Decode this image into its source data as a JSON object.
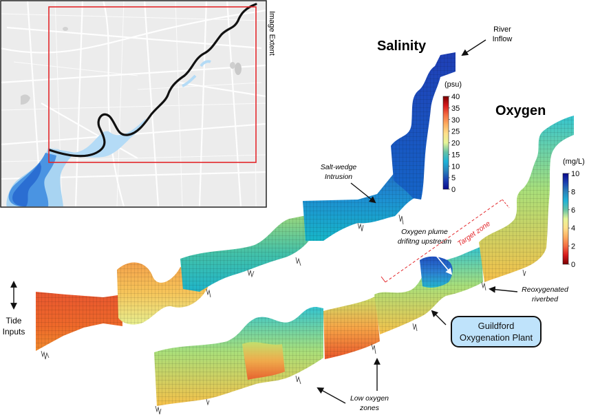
{
  "map_inset": {
    "extent_label": "Image Extent"
  },
  "panels": {
    "salinity": {
      "title": "Salinity",
      "unit": "(psu)",
      "ticks": [
        "40",
        "35",
        "30",
        "25",
        "20",
        "15",
        "10",
        "5",
        "0"
      ],
      "colormap": [
        "#7a0000",
        "#d7191c",
        "#f46d43",
        "#fdae61",
        "#fee08b",
        "#e6f598",
        "#66c2a5",
        "#1fb3d8",
        "#2b83ba",
        "#1b3fb0",
        "#0a0a8c"
      ]
    },
    "oxygen": {
      "title": "Oxygen",
      "unit": "(mg/L)",
      "ticks": [
        "10",
        "8",
        "6",
        "4",
        "2",
        "0"
      ],
      "colormap": [
        "#0a0a8c",
        "#1b3fb0",
        "#2b83ba",
        "#1fb3d8",
        "#66c2a5",
        "#e6f598",
        "#fee08b",
        "#fdae61",
        "#f46d43",
        "#d7191c",
        "#7a0000"
      ]
    }
  },
  "annotations": {
    "river_inflow": [
      "River",
      "Inflow"
    ],
    "salt_wedge": [
      "Salt-wedge",
      "Intrusion"
    ],
    "oxygen_plume": [
      "Oxygen plume",
      "drifitng upstream"
    ],
    "target_zone": "Target zone",
    "reoxygenated": [
      "Reoxygenated",
      "riverbed"
    ],
    "plant": [
      "Guildford",
      "Oxygenation Plant"
    ],
    "low_oxygen": [
      "Low oxygen",
      "zones"
    ],
    "tide": [
      "Tide",
      "Inputs"
    ]
  }
}
